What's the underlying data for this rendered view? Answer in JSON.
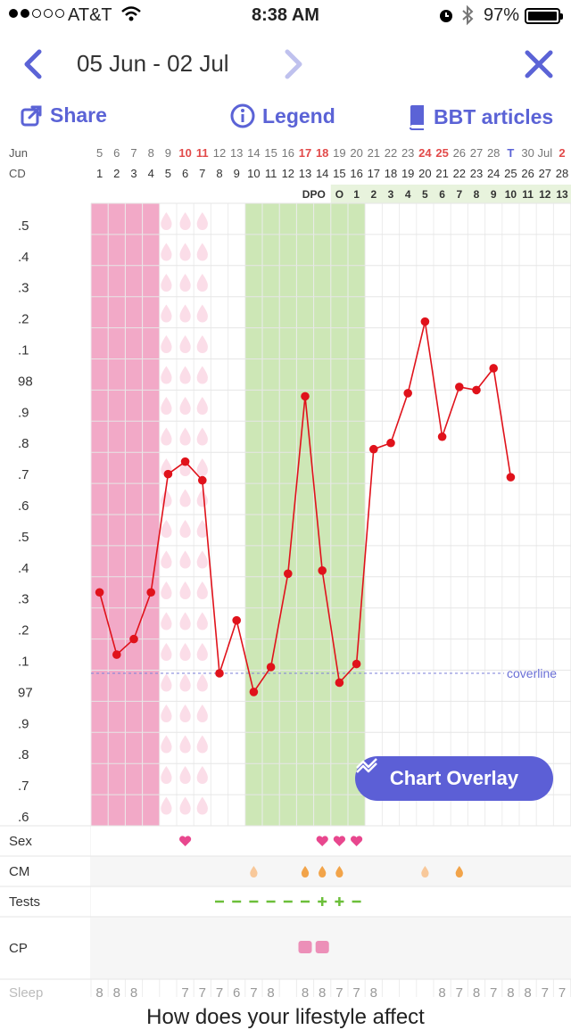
{
  "status": {
    "carrier": "AT&T",
    "time": "8:38 AM",
    "battery": "97%"
  },
  "nav": {
    "range": "05 Jun - 02 Jul"
  },
  "actions": {
    "share": "Share",
    "legend": "Legend",
    "articles": "BBT articles"
  },
  "row_labels": {
    "month": "Jun",
    "cd": "CD",
    "sex": "Sex",
    "cm": "CM",
    "tests": "Tests",
    "cp": "CP",
    "sleep": "Sleep"
  },
  "dates": [
    "5",
    "6",
    "7",
    "8",
    "9",
    "10",
    "11",
    "12",
    "13",
    "14",
    "15",
    "16",
    "17",
    "18",
    "19",
    "20",
    "21",
    "22",
    "23",
    "24",
    "25",
    "26",
    "27",
    "28",
    "T",
    "30",
    "Jul",
    "2"
  ],
  "date_colors": [
    "",
    "",
    "",
    "",
    "",
    "red",
    "red",
    "",
    "",
    "",
    "",
    "",
    "red",
    "red",
    "",
    "",
    "",
    "",
    "",
    "red",
    "red",
    "",
    "",
    "",
    "blue",
    "",
    "",
    "red"
  ],
  "cds": [
    "1",
    "2",
    "3",
    "4",
    "5",
    "6",
    "7",
    "8",
    "9",
    "10",
    "11",
    "12",
    "13",
    "14",
    "15",
    "16",
    "17",
    "18",
    "19",
    "20",
    "21",
    "22",
    "23",
    "24",
    "25",
    "26",
    "27",
    "28"
  ],
  "dpo_label": "DPO",
  "dpo": [
    "O",
    "1",
    "2",
    "3",
    "4",
    "5",
    "6",
    "7",
    "8",
    "9",
    "10",
    "11",
    "12",
    "13"
  ],
  "y_labels": [
    ".5",
    ".4",
    ".3",
    ".2",
    ".1",
    "98",
    ".9",
    ".8",
    ".7",
    ".6",
    ".5",
    ".4",
    ".3",
    ".2",
    ".1",
    "97",
    ".9",
    ".8",
    ".7",
    ".6"
  ],
  "coverline_label": "coverline",
  "overlay_button": "Chart Overlay",
  "sleep_values": [
    "8",
    "8",
    "8",
    "",
    "",
    "7",
    "7",
    "7",
    "6",
    "7",
    "8",
    "",
    "8",
    "8",
    "7",
    "7",
    "8",
    "",
    "",
    "",
    "8",
    "7",
    "8",
    "7",
    "8",
    "8",
    "7",
    "7"
  ],
  "bottom_text": "How does your lifestyle affect",
  "colors": {
    "accent": "#5b63d6",
    "period": "#f2a9c7",
    "fertile": "#cde7b6",
    "line": "#e0121b"
  },
  "chart_data": {
    "type": "line",
    "x": [
      1,
      2,
      3,
      4,
      5,
      6,
      7,
      8,
      9,
      10,
      11,
      12,
      13,
      14,
      15,
      16,
      17,
      18,
      19,
      20,
      21,
      22,
      23,
      24,
      25
    ],
    "y": [
      97.35,
      97.15,
      97.2,
      97.35,
      97.73,
      97.77,
      97.71,
      97.09,
      97.26,
      97.03,
      97.11,
      97.41,
      97.98,
      97.42,
      97.06,
      97.12,
      97.81,
      97.83,
      97.99,
      98.22,
      97.85,
      98.01,
      98.0,
      98.07,
      97.72
    ],
    "coverline": 97.09,
    "ylim": [
      96.6,
      98.5
    ],
    "sex_days": [
      6,
      14,
      15,
      16
    ],
    "cm_days": [
      10,
      13,
      14,
      15,
      20,
      22
    ],
    "tests": [
      {
        "day": 8,
        "v": "-"
      },
      {
        "day": 9,
        "v": "-"
      },
      {
        "day": 10,
        "v": "-"
      },
      {
        "day": 11,
        "v": "-"
      },
      {
        "day": 12,
        "v": "-"
      },
      {
        "day": 13,
        "v": "-"
      },
      {
        "day": 14,
        "v": "+"
      },
      {
        "day": 15,
        "v": "+"
      },
      {
        "day": 16,
        "v": "-"
      }
    ],
    "cp_days": [
      13,
      14
    ]
  }
}
